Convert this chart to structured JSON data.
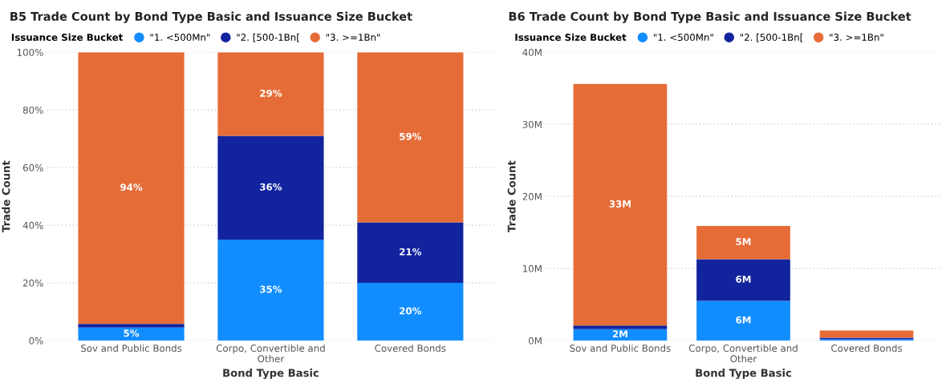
{
  "chart_data": [
    {
      "type": "bar",
      "stacked": true,
      "title": "B5 Trade Count by Bond Type Basic and Issuance Size Bucket",
      "xlabel": "Bond Type Basic",
      "ylabel": "Trade Count",
      "legend_title": "Issuance Size Bucket",
      "legend": "top left",
      "grid": "y",
      "categories": [
        "Sov and Public Bonds",
        "Corpo, Convertible and Other",
        "Covered Bonds"
      ],
      "ylim": [
        0,
        100
      ],
      "yticks": [
        {
          "value": 0,
          "label": "0%"
        },
        {
          "value": 20,
          "label": "20%"
        },
        {
          "value": 40,
          "label": "40%"
        },
        {
          "value": 60,
          "label": "60%"
        },
        {
          "value": 80,
          "label": "80%"
        },
        {
          "value": 100,
          "label": "100%"
        }
      ],
      "series": [
        {
          "name": "\"1. <500Mn\"",
          "color": "#118dff",
          "values": [
            4.5,
            35,
            20
          ],
          "value_labels": [
            "5%",
            "35%",
            "20%"
          ]
        },
        {
          "name": "\"2. [500-1Bn[",
          "color": "#12239e",
          "values": [
            1.3,
            36,
            21
          ],
          "value_labels": [
            null,
            "36%",
            "21%"
          ]
        },
        {
          "name": "\"3. >=1Bn\"",
          "color": "#e66c37",
          "values": [
            94.2,
            29,
            59
          ],
          "value_labels": [
            "94%",
            "29%",
            "59%"
          ]
        }
      ]
    },
    {
      "type": "bar",
      "stacked": true,
      "title": "B6 Trade Count by Bond Type Basic and Issuance Size Bucket",
      "xlabel": "Bond Type Basic",
      "ylabel": "Trade Count",
      "legend_title": "Issuance Size Bucket",
      "legend": "top left",
      "grid": "y",
      "categories": [
        "Sov and Public Bonds",
        "Corpo, Convertible and Other",
        "Covered Bonds"
      ],
      "ylim": [
        0,
        40
      ],
      "yticks": [
        {
          "value": 0,
          "label": "0M"
        },
        {
          "value": 10,
          "label": "10M"
        },
        {
          "value": 20,
          "label": "20M"
        },
        {
          "value": 30,
          "label": "30M"
        },
        {
          "value": 40,
          "label": "40M"
        }
      ],
      "series": [
        {
          "name": "\"1. <500Mn\"",
          "color": "#118dff",
          "values": [
            1.6,
            5.5,
            0.2
          ],
          "value_labels": [
            "2M",
            "6M",
            null
          ]
        },
        {
          "name": "\"2. [500-1Bn[",
          "color": "#12239e",
          "values": [
            0.5,
            5.8,
            0.2
          ],
          "value_labels": [
            null,
            "6M",
            null
          ]
        },
        {
          "name": "\"3. >=1Bn\"",
          "color": "#e66c37",
          "values": [
            33.5,
            4.6,
            1.0
          ],
          "value_labels": [
            "33M",
            "5M",
            null
          ]
        }
      ]
    }
  ]
}
